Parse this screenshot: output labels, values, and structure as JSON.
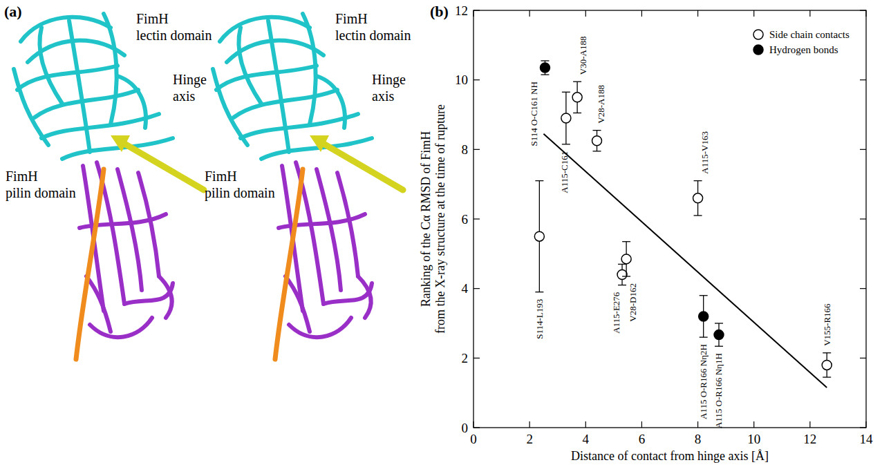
{
  "panel_a": {
    "letter": "(a)",
    "labels": {
      "lectin": [
        "FimH",
        "lectin domain"
      ],
      "hinge": [
        "Hinge",
        "axis"
      ],
      "pilin": [
        "FimH",
        "pilin domain"
      ]
    }
  },
  "chart_data": {
    "type": "scatter",
    "title": "(b)",
    "x_label": "Distance of contact from hinge axis [Å]",
    "y_label": [
      "Ranking of the Cα RMSD of FimH",
      "from the X-ray structure at the time of rupture"
    ],
    "xlim": [
      0,
      14
    ],
    "xticks": [
      0,
      2,
      4,
      6,
      8,
      10,
      12,
      14
    ],
    "ylim": [
      0,
      12
    ],
    "yticks": [
      0,
      2,
      4,
      6,
      8,
      10,
      12
    ],
    "grid": false,
    "legend": "upper right",
    "series": [
      {
        "name": "Side chain contacts",
        "marker": "circle-open",
        "color": "#000000",
        "x": [
          3.3,
          3.7,
          4.4,
          2.35,
          5.3,
          5.45,
          8.0,
          12.6
        ],
        "values": [
          8.9,
          9.5,
          8.25,
          5.5,
          4.4,
          4.85,
          6.6,
          1.8
        ],
        "errors": [
          0.75,
          0.45,
          0.3,
          1.6,
          0.3,
          0.5,
          0.5,
          0.35
        ],
        "labels": [
          "A115-C161",
          "V30-A188",
          "V28-A188",
          "S114-L193",
          "A115-E276",
          "V28-D162",
          "A115-V163",
          "V155-R166"
        ]
      },
      {
        "name": "Hydrogen bonds",
        "marker": "circle-filled",
        "color": "#000000",
        "x": [
          2.55,
          8.2,
          8.75
        ],
        "values": [
          10.35,
          3.2,
          2.67
        ],
        "errors": [
          0.2,
          0.6,
          0.33
        ],
        "labels": [
          "S114 O-C161 NH",
          "A115 O-R166 Nη2H",
          "A115 O-R166 Nη1H"
        ]
      },
      {
        "type": "line",
        "line_style": "solid",
        "color": "#000000",
        "x": [
          2.5,
          12.6
        ],
        "values": [
          8.45,
          1.15
        ]
      }
    ]
  }
}
